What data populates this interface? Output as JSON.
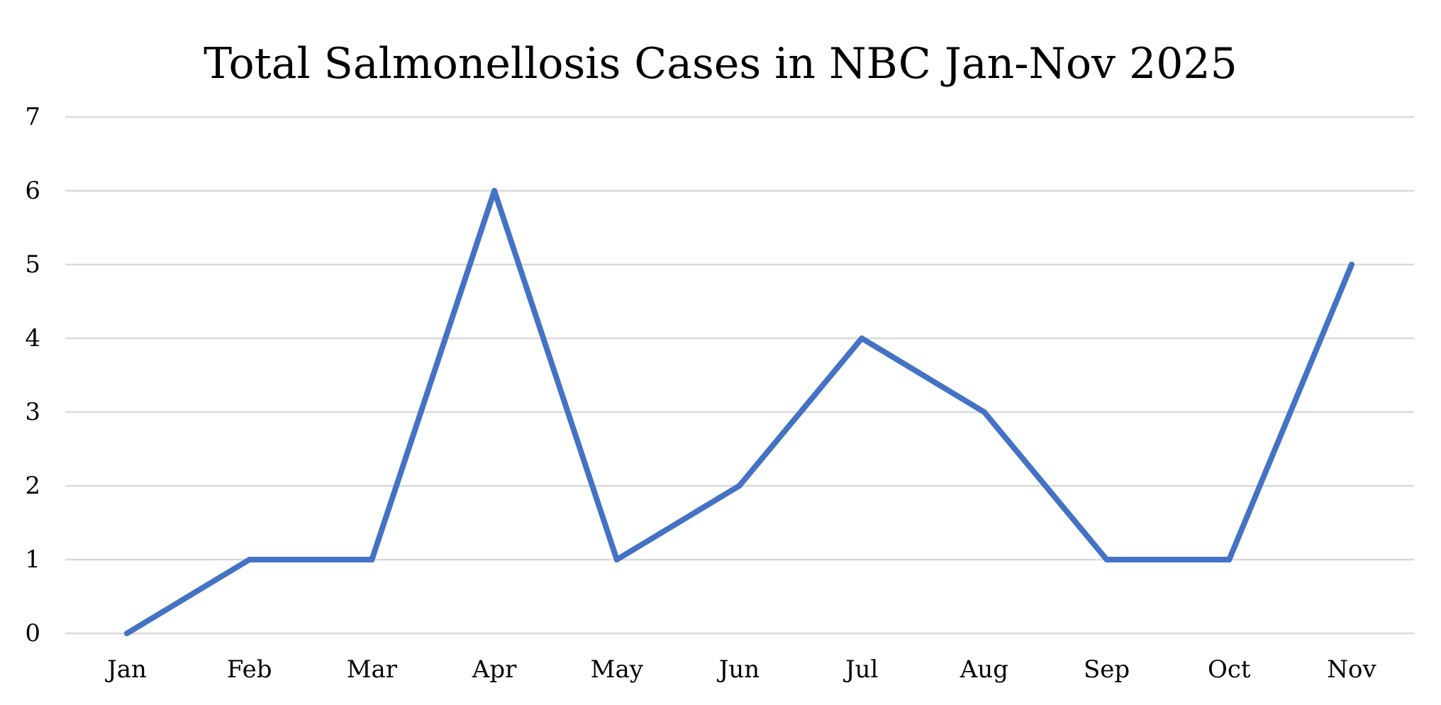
{
  "chart_data": {
    "type": "line",
    "title": "Total Salmonellosis Cases in NBC Jan-Nov 2025",
    "xlabel": "",
    "ylabel": "",
    "categories": [
      "Jan",
      "Feb",
      "Mar",
      "Apr",
      "May",
      "Jun",
      "Jul",
      "Aug",
      "Sep",
      "Oct",
      "Nov"
    ],
    "series": [
      {
        "name": "Total Salmonellosis Cases",
        "values": [
          0,
          1,
          1,
          6,
          1,
          2,
          4,
          3,
          1,
          1,
          5
        ],
        "color": "#4472C4"
      }
    ],
    "ylim": [
      0,
      7
    ],
    "yticks": [
      "0",
      "1",
      "2",
      "3",
      "4",
      "5",
      "6",
      "7"
    ],
    "grid": true,
    "legend": "none"
  },
  "colors": {
    "gridline": "#D9D9D9",
    "text": "#000000",
    "background": "#FFFFFF"
  }
}
